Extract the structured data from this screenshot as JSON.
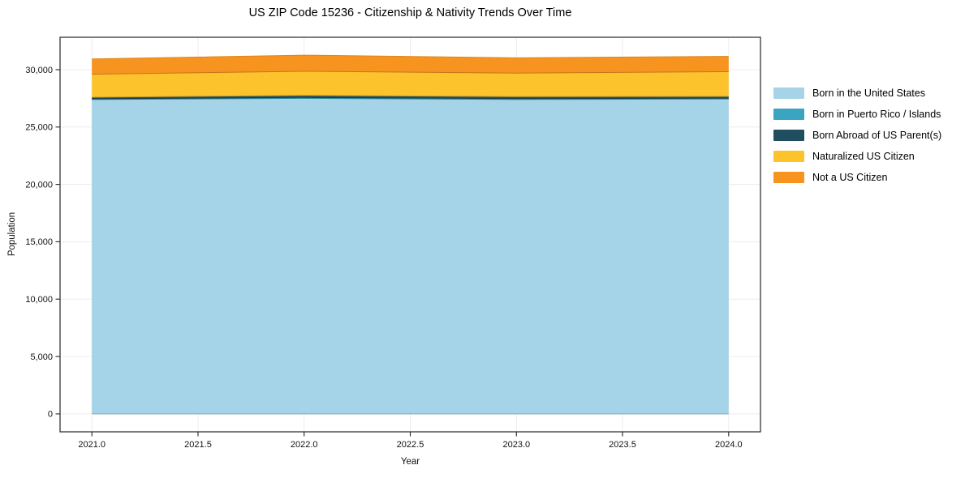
{
  "chart_data": {
    "type": "area",
    "stacked": true,
    "title": "US ZIP Code 15236 - Citizenship & Nativity Trends Over Time",
    "xlabel": "Year",
    "ylabel": "Population",
    "x": [
      2021.0,
      2022.0,
      2023.0,
      2024.0
    ],
    "series": [
      {
        "name": "Born in the United States",
        "key": "born-in-the-united-states",
        "color": "#a5d3e7",
        "values": [
          27400,
          27500,
          27400,
          27450
        ]
      },
      {
        "name": "Born in Puerto Rico / Islands",
        "key": "born-in-puerto-rico-islands",
        "color": "#3aa5c1",
        "values": [
          60,
          80,
          80,
          60
        ]
      },
      {
        "name": "Born Abroad of US Parent(s)",
        "key": "born-abroad-of-us-parents",
        "color": "#214e5e",
        "values": [
          140,
          180,
          170,
          160
        ]
      },
      {
        "name": "Naturalized US Citizen",
        "key": "naturalized-us-citizen",
        "color": "#fcc32d",
        "values": [
          2000,
          2100,
          2050,
          2150
        ]
      },
      {
        "name": "Not a US Citizen",
        "key": "not-a-us-citizen",
        "color": "#f7941f",
        "values": [
          1330,
          1400,
          1330,
          1340
        ]
      }
    ],
    "totals": [
      30930,
      31260,
      31030,
      31160
    ],
    "xlim": [
      2020.85,
      2024.15
    ],
    "ylim": [
      -1563,
      32823
    ],
    "x_ticks": {
      "values": [
        2021.0,
        2021.5,
        2022.0,
        2022.5,
        2023.0,
        2023.5,
        2024.0
      ],
      "labels": [
        "2021.0",
        "2021.5",
        "2022.0",
        "2022.5",
        "2023.0",
        "2023.5",
        "2024.0"
      ]
    },
    "y_ticks": {
      "values": [
        0,
        5000,
        10000,
        15000,
        20000,
        25000,
        30000
      ],
      "labels": [
        "0",
        "5,000",
        "10,000",
        "15,000",
        "20,000",
        "25,000",
        "30,000"
      ]
    },
    "grid": true,
    "legend_position": "right-outside",
    "colors": {
      "grid": "#ececec",
      "spine": "#262626",
      "tick_text": "#111111",
      "background": "#ffffff"
    }
  }
}
